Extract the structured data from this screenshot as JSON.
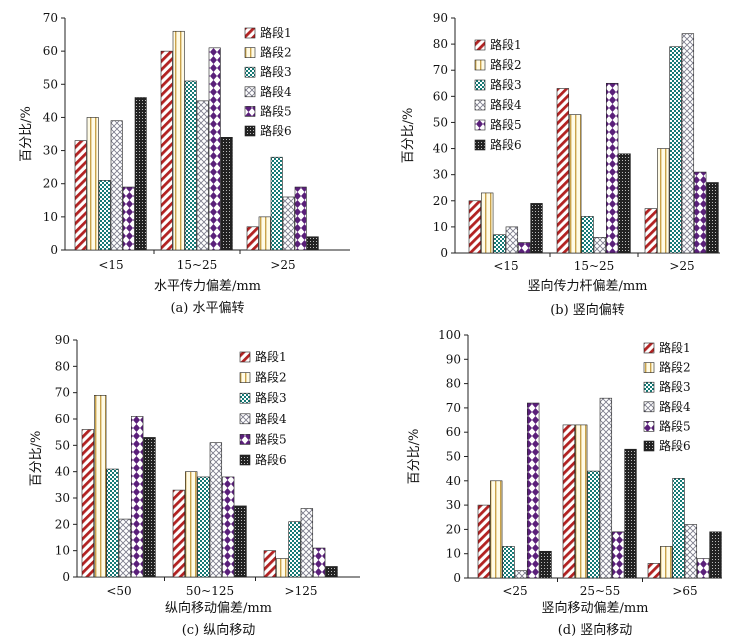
{
  "colors": {
    "axis": "#222222",
    "background": "#ffffff"
  },
  "chart_data": [
    {
      "type": "bar",
      "caption": "(a) 水平偏转",
      "xlabel": "水平传力偏差/mm",
      "ylabel": "百分比/%",
      "ylim": [
        0,
        70
      ],
      "yticks": [
        0,
        10,
        20,
        30,
        40,
        50,
        60,
        70
      ],
      "categories": [
        "<15",
        "15~25",
        ">25"
      ],
      "legend_position": "top-right",
      "series": [
        {
          "name": "路段1",
          "values": [
            33,
            60,
            7
          ]
        },
        {
          "name": "路段2",
          "values": [
            40,
            66,
            10
          ]
        },
        {
          "name": "路段3",
          "values": [
            21,
            51,
            28
          ]
        },
        {
          "name": "路段4",
          "values": [
            39,
            45,
            16
          ]
        },
        {
          "name": "路段5",
          "values": [
            19,
            61,
            19
          ]
        },
        {
          "name": "路段6",
          "values": [
            46,
            34,
            4
          ]
        }
      ]
    },
    {
      "type": "bar",
      "caption": "(b) 竖向偏转",
      "xlabel": "竖向传力杆偏差/mm",
      "ylabel": "百分比/%",
      "ylim": [
        0,
        90
      ],
      "yticks": [
        0,
        10,
        20,
        30,
        40,
        50,
        60,
        70,
        80,
        90
      ],
      "categories": [
        "<15",
        "15~25",
        ">25"
      ],
      "legend_position": "top-left",
      "series": [
        {
          "name": "路段1",
          "values": [
            20,
            63,
            17
          ]
        },
        {
          "name": "路段2",
          "values": [
            23,
            53,
            40
          ]
        },
        {
          "name": "路段3",
          "values": [
            7,
            14,
            79
          ]
        },
        {
          "name": "路段4",
          "values": [
            10,
            6,
            84
          ]
        },
        {
          "name": "路段5",
          "values": [
            4,
            65,
            31
          ]
        },
        {
          "name": "路段6",
          "values": [
            19,
            38,
            27
          ]
        }
      ]
    },
    {
      "type": "bar",
      "caption": "(c) 纵向移动",
      "xlabel": "纵向移动偏差/mm",
      "ylabel": "百分比/%",
      "ylim": [
        0,
        90
      ],
      "yticks": [
        0,
        10,
        20,
        30,
        40,
        50,
        60,
        70,
        80,
        90
      ],
      "categories": [
        "<50",
        "50~125",
        ">125"
      ],
      "legend_position": "top-right",
      "series": [
        {
          "name": "路段1",
          "values": [
            56,
            33,
            10
          ]
        },
        {
          "name": "路段2",
          "values": [
            69,
            40,
            7
          ]
        },
        {
          "name": "路段3",
          "values": [
            41,
            38,
            21
          ]
        },
        {
          "name": "路段4",
          "values": [
            22,
            51,
            26
          ]
        },
        {
          "name": "路段5",
          "values": [
            61,
            38,
            11
          ]
        },
        {
          "name": "路段6",
          "values": [
            53,
            27,
            4
          ]
        }
      ]
    },
    {
      "type": "bar",
      "caption": "(d) 竖向移动",
      "xlabel": "竖向移动偏差/mm",
      "ylabel": "百分比/%",
      "ylim": [
        0,
        100
      ],
      "yticks": [
        0,
        10,
        20,
        30,
        40,
        50,
        60,
        70,
        80,
        90,
        100
      ],
      "categories": [
        "<25",
        "25~55",
        ">65"
      ],
      "legend_position": "top-right",
      "series": [
        {
          "name": "路段1",
          "values": [
            30,
            63,
            6
          ]
        },
        {
          "name": "路段2",
          "values": [
            40,
            63,
            13
          ]
        },
        {
          "name": "路段3",
          "values": [
            13,
            44,
            41
          ]
        },
        {
          "name": "路段4",
          "values": [
            3,
            74,
            22
          ]
        },
        {
          "name": "路段5",
          "values": [
            72,
            19,
            8
          ]
        },
        {
          "name": "路段6",
          "values": [
            11,
            53,
            19
          ]
        }
      ]
    }
  ]
}
